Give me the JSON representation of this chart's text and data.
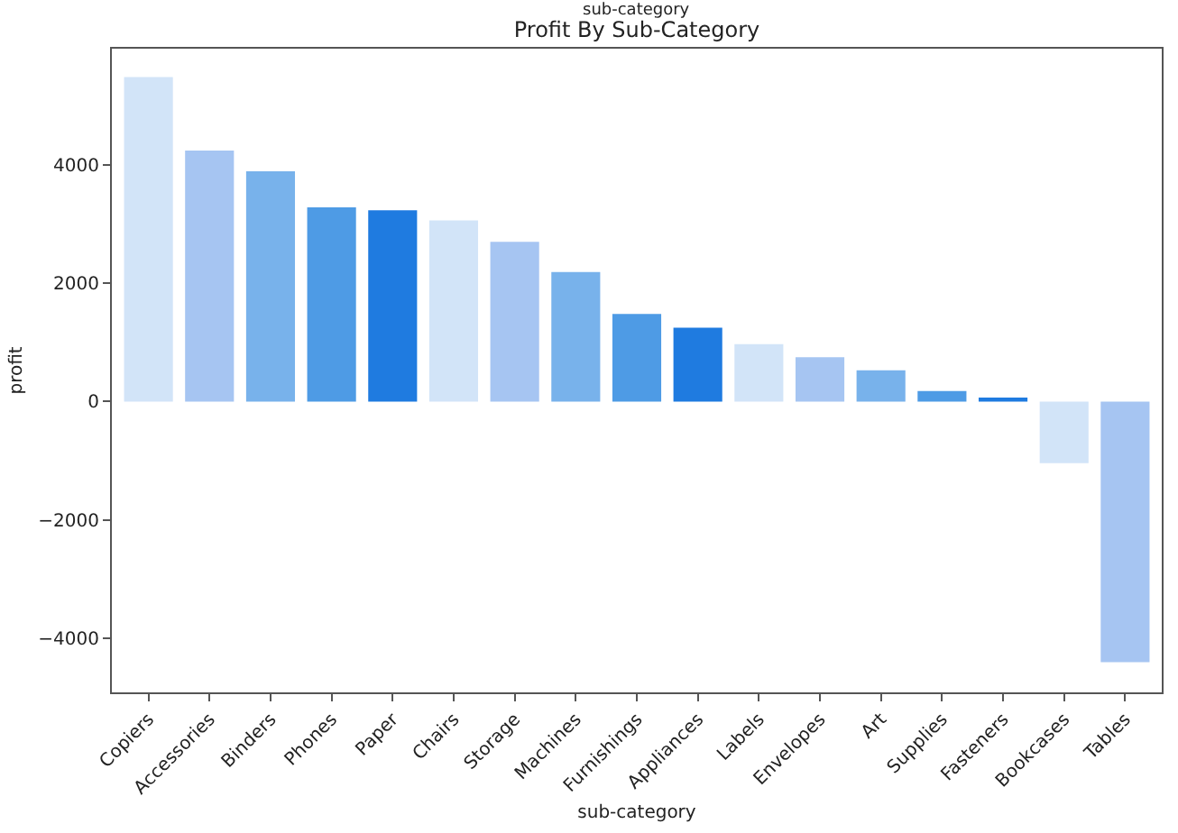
{
  "chart_data": {
    "type": "bar",
    "title": "Profit By Sub-Category",
    "annotations": [
      "sub-category"
    ],
    "xlabel": "sub-category",
    "ylabel": "profit",
    "categories": [
      "Copiers",
      "Accessories",
      "Binders",
      "Phones",
      "Paper",
      "Chairs",
      "Storage",
      "Machines",
      "Furnishings",
      "Appliances",
      "Labels",
      "Envelopes",
      "Art",
      "Supplies",
      "Fasteners",
      "Bookcases",
      "Tables"
    ],
    "values": [
      5480,
      4240,
      3890,
      3280,
      3230,
      3060,
      2700,
      2190,
      1480,
      1250,
      970,
      750,
      530,
      180,
      70,
      -1040,
      -4400
    ],
    "colors": [
      "#d2e4f8",
      "#a6c5f2",
      "#78b2eb",
      "#4e9be5",
      "#1f7be0",
      "#d2e4f8",
      "#a6c5f2",
      "#78b2eb",
      "#4e9be5",
      "#1f7be0",
      "#d2e4f8",
      "#a6c5f2",
      "#78b2eb",
      "#4e9be5",
      "#1f7be0",
      "#d2e4f8",
      "#a6c5f2"
    ],
    "ylim": [
      -4910,
      5960
    ],
    "yticks": [
      -4000,
      -2000,
      0,
      2000,
      4000
    ]
  }
}
